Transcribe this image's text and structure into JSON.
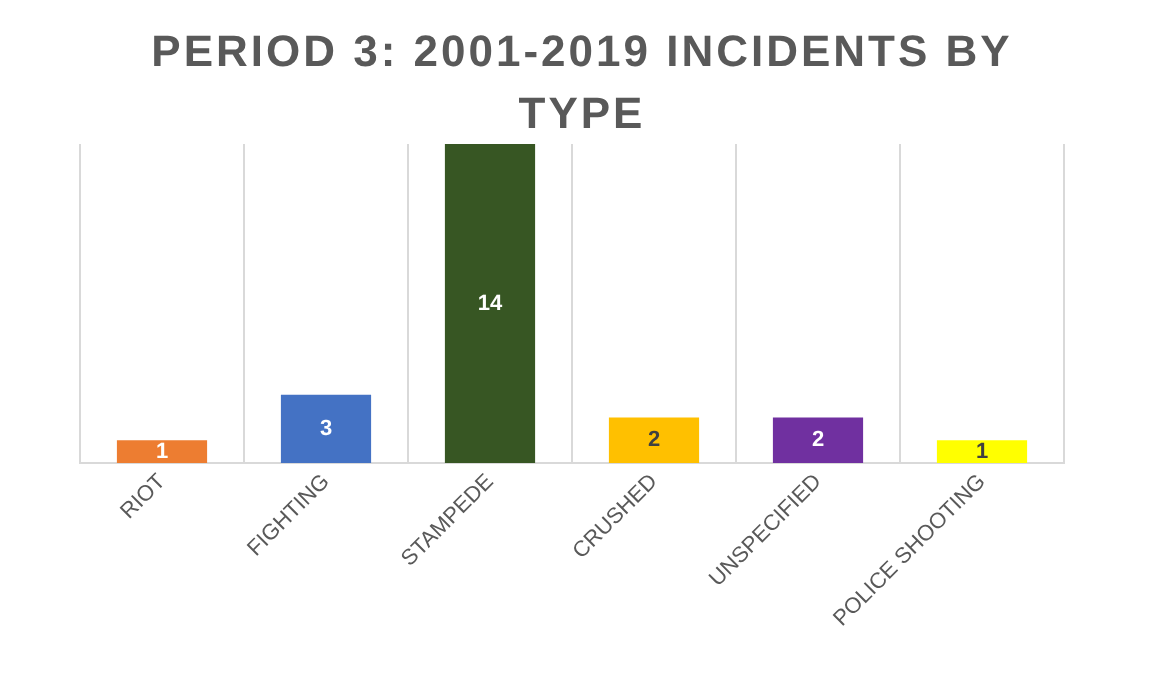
{
  "chart_data": {
    "type": "bar",
    "title": "PERIOD 3: 2001-2019 INCIDENTS BY TYPE",
    "categories": [
      "RIOT",
      "FIGHTING",
      "STAMPEDE",
      "CRUSHED",
      "UNSPECIFIED",
      "POLICE SHOOTING"
    ],
    "values": [
      1,
      3,
      14,
      2,
      2,
      1
    ],
    "colors": [
      "#ed7d31",
      "#4472c4",
      "#375623",
      "#ffc000",
      "#7030a0",
      "#ffff00"
    ],
    "data_labels": true,
    "grid": "x"
  }
}
